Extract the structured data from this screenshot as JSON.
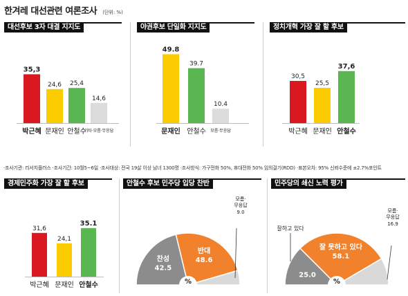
{
  "header": {
    "title": "한겨레 대선관련 여론조사",
    "unit": "(단위: %)"
  },
  "note": "·조사기관: 리서치플러스 ·조사기간: 10월5~6일 ·조사대상: 전국 19살 이상 남녀 1300명 ·조사방식: 가구전화 50%, 휴대전화 50% 임의걸기(RDD) ·표본오차: 95% 신뢰수준에 ±2.7%포인트",
  "colors": {
    "red": "#d9181f",
    "yellow": "#fccc00",
    "green": "#5ab651",
    "gray": "#dcdcdc",
    "pie_gray": "#8c8c8c",
    "pie_orange": "#f1812b",
    "pie_light": "#d9d9d9"
  },
  "chart_data": [
    {
      "type": "bar",
      "title": "대선후보 3자 대결 지지도",
      "categories": [
        "박근혜",
        "문재인",
        "안철수",
        "기타·모름·무응답"
      ],
      "values": [
        35.3,
        24.6,
        25.4,
        14.6
      ],
      "value_labels": [
        "35,3",
        "24,6",
        "25,4",
        "14,6"
      ],
      "colors": [
        "#d9181f",
        "#fccc00",
        "#5ab651",
        "#dcdcdc"
      ],
      "highlight": 0,
      "ylim": [
        0,
        50
      ]
    },
    {
      "type": "bar",
      "title": "야권후보 단일화 지지도",
      "categories": [
        "문재인",
        "안철수",
        "모름·무응답"
      ],
      "values": [
        49.8,
        39.7,
        10.4
      ],
      "value_labels": [
        "49.8",
        "39.7",
        "10.4"
      ],
      "colors": [
        "#fccc00",
        "#5ab651",
        "#dcdcdc"
      ],
      "highlight": 0,
      "ylim": [
        0,
        50
      ]
    },
    {
      "type": "bar",
      "title": "정치개혁 가장 잘 할 후보",
      "categories": [
        "박근혜",
        "문재인",
        "안철수"
      ],
      "values": [
        30.5,
        25.5,
        37.6
      ],
      "value_labels": [
        "30,5",
        "25,5",
        "37,6"
      ],
      "colors": [
        "#d9181f",
        "#fccc00",
        "#5ab651"
      ],
      "highlight": 2,
      "ylim": [
        0,
        50
      ]
    },
    {
      "type": "bar",
      "title": "경제민주화 가장 잘 할 후보",
      "categories": [
        "박근혜",
        "문재인",
        "안철수"
      ],
      "values": [
        31.6,
        24.1,
        35.1
      ],
      "value_labels": [
        "31,6",
        "24,1",
        "35.1"
      ],
      "colors": [
        "#d9181f",
        "#fccc00",
        "#5ab651"
      ],
      "highlight": 2,
      "ylim": [
        0,
        50
      ]
    },
    {
      "type": "pie",
      "title": "안철수 후보 민주당 입당 찬반",
      "center_label": "%",
      "slices": [
        {
          "label": "찬성",
          "value": 42.5,
          "value_label": "42.5",
          "color": "#8c8c8c"
        },
        {
          "label": "반대",
          "value": 48.6,
          "value_label": "48.6",
          "color": "#f1812b"
        },
        {
          "label": "모름·무응답",
          "value": 9.0,
          "value_label": "9.0",
          "color": "#d9d9d9"
        }
      ]
    },
    {
      "type": "pie",
      "title": "민주당의 쇄신 노력 평가",
      "center_label": "%",
      "slices": [
        {
          "label": "잘하고 있다",
          "value": 25.0,
          "value_label": "25.0",
          "color": "#8c8c8c"
        },
        {
          "label": "잘 못하고 있다",
          "value": 58.1,
          "value_label": "58.1",
          "color": "#f1812b"
        },
        {
          "label": "모름·무응답",
          "value": 16.9,
          "value_label": "16.9",
          "color": "#d9d9d9"
        }
      ]
    }
  ]
}
